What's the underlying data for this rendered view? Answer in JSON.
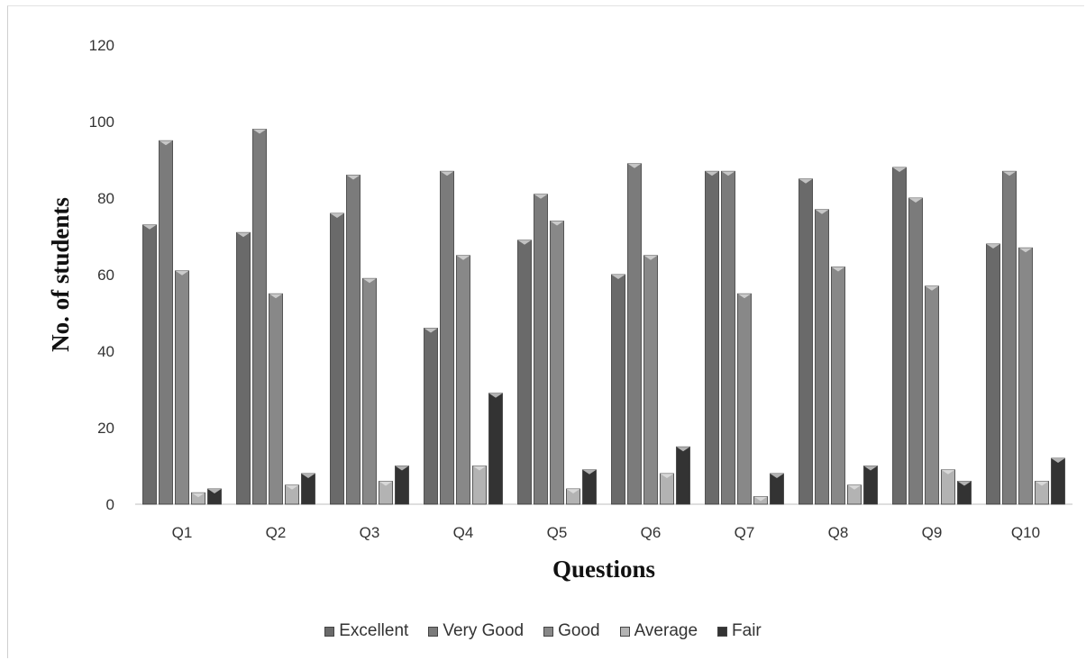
{
  "chart_data": {
    "type": "bar",
    "title": "",
    "xlabel": "Questions",
    "ylabel": "No. of students",
    "ylim": [
      0,
      120
    ],
    "yticks": [
      "0",
      "20",
      "40",
      "60",
      "80",
      "100",
      "120"
    ],
    "grid": false,
    "legend_position": "bottom",
    "categories": [
      "Q1",
      "Q2",
      "Q3",
      "Q4",
      "Q5",
      "Q6",
      "Q7",
      "Q8",
      "Q9",
      "Q10"
    ],
    "series": [
      {
        "name": "Excellent",
        "color": "#6a6a6a",
        "values": [
          73,
          71,
          76,
          46,
          69,
          60,
          87,
          85,
          88,
          68
        ]
      },
      {
        "name": "Very Good",
        "color": "#7b7b7b",
        "values": [
          95,
          98,
          86,
          87,
          81,
          89,
          87,
          77,
          80,
          87
        ]
      },
      {
        "name": "Good",
        "color": "#888888",
        "values": [
          61,
          55,
          59,
          65,
          74,
          65,
          55,
          62,
          57,
          67
        ]
      },
      {
        "name": "Average",
        "color": "#b3b3b3",
        "values": [
          3,
          5,
          6,
          10,
          4,
          8,
          2,
          5,
          9,
          6
        ]
      },
      {
        "name": "Fair",
        "color": "#333333",
        "values": [
          4,
          8,
          10,
          29,
          9,
          15,
          8,
          10,
          6,
          12
        ]
      }
    ]
  }
}
